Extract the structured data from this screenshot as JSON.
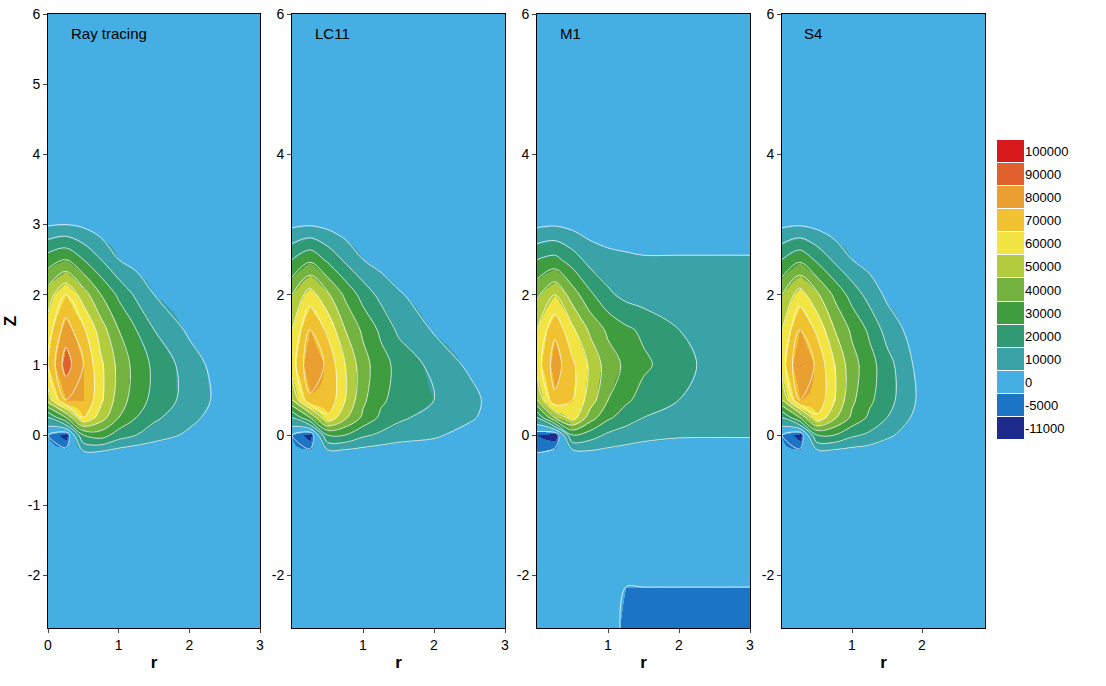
{
  "chart_data": [
    {
      "type": "contour",
      "title": "Ray tracing",
      "x_label": "r",
      "y_label": "Z",
      "xlim": [
        0,
        3
      ],
      "ylim": [
        -2.75,
        6
      ],
      "xticks": [
        0,
        1,
        2,
        3
      ],
      "yticks": [
        -2,
        -1,
        0,
        1,
        2,
        3,
        4,
        5,
        6
      ],
      "x": [
        0,
        0.25,
        0.5,
        0.75,
        1,
        1.25,
        1.5,
        2,
        2.5,
        3
      ],
      "y": [
        -2.75,
        -1,
        -0.25,
        0,
        0.25,
        0.5,
        1,
        1.5,
        2,
        2.5,
        3,
        4,
        6
      ],
      "values": [
        [
          2000,
          2000,
          2000,
          2000,
          2000,
          2000,
          2000,
          2000,
          2000,
          2000
        ],
        [
          2000,
          2000,
          2000,
          2000,
          2000,
          2000,
          2000,
          2000,
          2000,
          2000
        ],
        [
          2000,
          3000,
          8000,
          8000,
          5000,
          3000,
          2000,
          2000,
          2000,
          2000
        ],
        [
          0,
          -8000,
          30000,
          35000,
          25000,
          20000,
          15000,
          8000,
          3000,
          2000
        ],
        [
          20000,
          40000,
          70000,
          55000,
          40000,
          30000,
          22000,
          13000,
          4000,
          2000
        ],
        [
          55000,
          80000,
          80000,
          62000,
          45000,
          35000,
          27000,
          16000,
          6000,
          2000
        ],
        [
          70000,
          95000,
          80000,
          62000,
          47000,
          36000,
          28000,
          15000,
          4000,
          2000
        ],
        [
          65000,
          85000,
          72000,
          55000,
          40000,
          30000,
          20000,
          8000,
          3000,
          2000
        ],
        [
          55000,
          70000,
          55000,
          40000,
          28000,
          18000,
          10000,
          4000,
          2000,
          2000
        ],
        [
          35000,
          40000,
          30000,
          20000,
          10000,
          6000,
          4000,
          2000,
          2000,
          2000
        ],
        [
          9000,
          10000,
          8000,
          4000,
          3000,
          2000,
          2000,
          2000,
          2000,
          2000
        ],
        [
          2000,
          2000,
          2000,
          2000,
          2000,
          2000,
          2000,
          2000,
          2000,
          2000
        ],
        [
          2000,
          2000,
          2000,
          2000,
          2000,
          2000,
          2000,
          2000,
          2000,
          2000
        ]
      ]
    },
    {
      "type": "contour",
      "title": "LC11",
      "x_label": "r",
      "xlim": [
        0,
        3
      ],
      "ylim": [
        -2.75,
        6
      ],
      "xticks": [
        1,
        2,
        3
      ],
      "yticks": [
        -2,
        0,
        2,
        4,
        6
      ],
      "x": [
        0,
        0.25,
        0.5,
        0.75,
        1,
        1.25,
        1.5,
        2,
        2.5,
        3
      ],
      "y": [
        -2.75,
        -1,
        -0.25,
        0,
        0.25,
        0.5,
        1,
        1.5,
        2,
        2.5,
        3,
        4,
        6
      ],
      "values": [
        [
          2000,
          2000,
          2000,
          2000,
          2000,
          2000,
          2000,
          2000,
          2000,
          2000
        ],
        [
          2000,
          2000,
          2000,
          2000,
          2000,
          2000,
          2000,
          2000,
          2000,
          2000
        ],
        [
          1000,
          2000,
          6000,
          6000,
          5000,
          4000,
          3000,
          2000,
          2000,
          2000
        ],
        [
          0,
          -8000,
          30000,
          30000,
          22000,
          18000,
          15000,
          12000,
          5000,
          2000
        ],
        [
          20000,
          40000,
          68000,
          52000,
          38000,
          28000,
          22000,
          16000,
          12000,
          2000
        ],
        [
          50000,
          78000,
          78000,
          60000,
          42000,
          32000,
          26000,
          20000,
          14000,
          2000
        ],
        [
          65000,
          88000,
          78000,
          60000,
          44000,
          34000,
          27000,
          17000,
          8000,
          2000
        ],
        [
          60000,
          80000,
          68000,
          50000,
          38000,
          28000,
          18000,
          9000,
          4000,
          2000
        ],
        [
          50000,
          65000,
          52000,
          38000,
          26000,
          17000,
          11000,
          5000,
          2000,
          2000
        ],
        [
          30000,
          38000,
          28000,
          18000,
          10000,
          6000,
          4000,
          2000,
          2000,
          2000
        ],
        [
          8000,
          9000,
          7000,
          4000,
          3000,
          2000,
          2000,
          2000,
          2000,
          2000
        ],
        [
          2000,
          2000,
          2000,
          2000,
          2000,
          2000,
          2000,
          2000,
          2000,
          2000
        ],
        [
          2000,
          2000,
          2000,
          2000,
          2000,
          2000,
          2000,
          2000,
          2000,
          2000
        ]
      ]
    },
    {
      "type": "contour",
      "title": "M1",
      "x_label": "r",
      "xlim": [
        0,
        3
      ],
      "ylim": [
        -2.75,
        6
      ],
      "xticks": [
        1,
        2,
        3
      ],
      "yticks": [
        -2,
        0,
        2,
        4,
        6
      ],
      "x": [
        0,
        0.25,
        0.5,
        0.75,
        1,
        1.25,
        1.5,
        2,
        2.5,
        3
      ],
      "y": [
        -2.75,
        -1,
        -0.25,
        0,
        0.25,
        0.5,
        1,
        1.5,
        2,
        2.5,
        3,
        4,
        6
      ],
      "values": [
        [
          2000,
          2000,
          2000,
          2000,
          2000,
          -1000,
          -1000,
          -1000,
          -1000,
          -1000
        ],
        [
          2000,
          2000,
          2000,
          2000,
          2000,
          2000,
          2000,
          2000,
          2000,
          2000
        ],
        [
          0,
          3000,
          6000,
          8000,
          7000,
          6000,
          5000,
          5000,
          4000,
          4000
        ],
        [
          -5000,
          -9000,
          30000,
          25000,
          18000,
          15000,
          13000,
          11000,
          11000,
          11000
        ],
        [
          20000,
          50000,
          65000,
          45000,
          32000,
          25000,
          20000,
          14000,
          12000,
          11000
        ],
        [
          50000,
          78000,
          70000,
          55000,
          40000,
          32000,
          26000,
          20000,
          14000,
          12000
        ],
        [
          65000,
          85000,
          72000,
          58000,
          45000,
          38000,
          32000,
          24000,
          16000,
          12000
        ],
        [
          60000,
          78000,
          62000,
          48000,
          38000,
          32000,
          28000,
          20000,
          15000,
          12000
        ],
        [
          48000,
          60000,
          45000,
          32000,
          22000,
          17000,
          15000,
          13000,
          12000,
          11000
        ],
        [
          30000,
          33000,
          25000,
          16000,
          13000,
          12000,
          11000,
          11000,
          11000,
          11000
        ],
        [
          8000,
          9000,
          7000,
          5000,
          4000,
          3000,
          3000,
          3000,
          3000,
          3000
        ],
        [
          2000,
          2000,
          2000,
          2000,
          2000,
          2000,
          2000,
          2000,
          2000,
          2000
        ],
        [
          2000,
          2000,
          2000,
          2000,
          2000,
          2000,
          2000,
          2000,
          2000,
          2000
        ]
      ]
    },
    {
      "type": "contour",
      "title": "S4",
      "x_label": "r",
      "xlim": [
        0,
        2.9
      ],
      "ylim": [
        -2.75,
        6
      ],
      "xticks": [
        1,
        2
      ],
      "yticks": [
        -2,
        0,
        2,
        4,
        6
      ],
      "x": [
        0,
        0.25,
        0.5,
        0.75,
        1,
        1.25,
        1.5,
        2,
        2.5,
        3
      ],
      "y": [
        -2.75,
        -1,
        -0.25,
        0,
        0.25,
        0.5,
        1,
        1.5,
        2,
        2.5,
        3,
        4,
        6
      ],
      "values": [
        [
          2000,
          2000,
          2000,
          2000,
          2000,
          2000,
          2000,
          2000,
          2000,
          2000
        ],
        [
          2000,
          2000,
          2000,
          2000,
          2000,
          2000,
          2000,
          2000,
          2000,
          2000
        ],
        [
          1000,
          2000,
          6000,
          6000,
          5000,
          4000,
          3000,
          2000,
          2000,
          2000
        ],
        [
          0,
          -8000,
          30000,
          30000,
          22000,
          18000,
          12000,
          3000,
          2000,
          2000
        ],
        [
          20000,
          40000,
          68000,
          52000,
          38000,
          28000,
          20000,
          5000,
          2000,
          2000
        ],
        [
          50000,
          80000,
          78000,
          60000,
          42000,
          32000,
          24000,
          7000,
          2000,
          2000
        ],
        [
          65000,
          90000,
          78000,
          60000,
          44000,
          34000,
          24000,
          5000,
          2000,
          2000
        ],
        [
          60000,
          80000,
          68000,
          50000,
          38000,
          28000,
          16000,
          3000,
          2000,
          2000
        ],
        [
          50000,
          65000,
          52000,
          38000,
          26000,
          16000,
          8000,
          2000,
          2000,
          2000
        ],
        [
          30000,
          38000,
          28000,
          18000,
          10000,
          6000,
          3000,
          2000,
          2000,
          2000
        ],
        [
          8000,
          9000,
          7000,
          4000,
          3000,
          2000,
          2000,
          2000,
          2000,
          2000
        ],
        [
          2000,
          2000,
          2000,
          2000,
          2000,
          2000,
          2000,
          2000,
          2000,
          2000
        ],
        [
          2000,
          2000,
          2000,
          2000,
          2000,
          2000,
          2000,
          2000,
          2000,
          2000
        ]
      ]
    }
  ],
  "colorbar": {
    "range": [
      -11000,
      100000
    ],
    "ticks": [
      100000,
      90000,
      80000,
      70000,
      60000,
      50000,
      40000,
      30000,
      20000,
      10000,
      0,
      -5000,
      -11000
    ],
    "colors": [
      "#d7191c",
      "#e0612d",
      "#e9a030",
      "#f0c232",
      "#f2e443",
      "#b3cc3e",
      "#74b33f",
      "#3f9c3f",
      "#2f9a74",
      "#3aa3a8",
      "#45aee3",
      "#1c74c4",
      "#1d2c8c"
    ]
  }
}
